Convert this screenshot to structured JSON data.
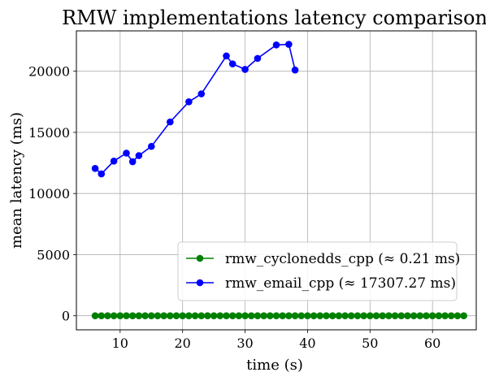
{
  "chart_data": {
    "type": "line",
    "title": "RMW implementations latency comparison",
    "xlabel": "time (s)",
    "ylabel": "mean latency (ms)",
    "xlim": [
      3,
      67
    ],
    "ylim": [
      -1150,
      23300
    ],
    "xticks": [
      10,
      20,
      30,
      40,
      50,
      60
    ],
    "yticks": [
      0,
      5000,
      10000,
      15000,
      20000
    ],
    "grid": true,
    "legend_position": "lower-right",
    "series": [
      {
        "name": "rmw_cyclonedds_cpp (≈ 0.21 ms)",
        "color": "#008000",
        "marker": "circle",
        "x": [
          6,
          7,
          8,
          9,
          10,
          11,
          12,
          13,
          14,
          15,
          16,
          17,
          18,
          19,
          20,
          21,
          22,
          23,
          24,
          25,
          26,
          27,
          28,
          29,
          30,
          31,
          32,
          33,
          34,
          35,
          36,
          37,
          38,
          39,
          40,
          41,
          42,
          43,
          44,
          45,
          46,
          47,
          48,
          49,
          50,
          51,
          52,
          53,
          54,
          55,
          56,
          57,
          58,
          59,
          60,
          61,
          62,
          63,
          64,
          65
        ],
        "y": [
          0.21,
          0.21,
          0.21,
          0.21,
          0.21,
          0.21,
          0.21,
          0.21,
          0.21,
          0.21,
          0.21,
          0.21,
          0.21,
          0.21,
          0.21,
          0.21,
          0.21,
          0.21,
          0.21,
          0.21,
          0.21,
          0.21,
          0.21,
          0.21,
          0.21,
          0.21,
          0.21,
          0.21,
          0.21,
          0.21,
          0.21,
          0.21,
          0.21,
          0.21,
          0.21,
          0.21,
          0.21,
          0.21,
          0.21,
          0.21,
          0.21,
          0.21,
          0.21,
          0.21,
          0.21,
          0.21,
          0.21,
          0.21,
          0.21,
          0.21,
          0.21,
          0.21,
          0.21,
          0.21,
          0.21,
          0.21,
          0.21,
          0.21,
          0.21,
          0.21
        ]
      },
      {
        "name": "rmw_email_cpp (≈ 17307.27 ms)",
        "color": "#0000ff",
        "marker": "circle",
        "x": [
          6,
          7,
          9,
          11,
          12,
          13,
          15,
          18,
          21,
          23,
          27,
          28,
          30,
          32,
          35,
          37,
          38
        ],
        "y": [
          12050,
          11600,
          12650,
          13300,
          12600,
          13100,
          13850,
          15850,
          17500,
          18150,
          21250,
          20600,
          20150,
          21050,
          22150,
          22200,
          20100
        ]
      }
    ]
  }
}
